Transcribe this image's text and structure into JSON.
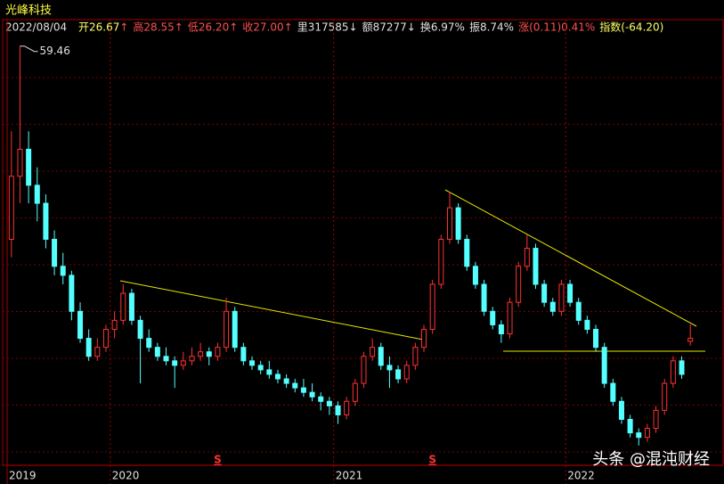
{
  "header": {
    "name": "光峰科技",
    "date": "2022/08/04",
    "items": [
      {
        "text": "开26.67",
        "arrow": "↑",
        "color": "#ffff66"
      },
      {
        "text": "高28.55",
        "arrow": "↑",
        "color": "#ff5050"
      },
      {
        "text": "低26.20",
        "arrow": "↑",
        "color": "#ff5050"
      },
      {
        "text": "收27.00",
        "arrow": "↑",
        "color": "#ff5050"
      },
      {
        "text": "里317585",
        "arrow": "↓",
        "color": "#e0e0e0"
      },
      {
        "text": "额87277",
        "arrow": "↓",
        "color": "#e0e0e0"
      },
      {
        "text": "换6.97%",
        "color": "#e0e0e0"
      },
      {
        "text": "振8.74%",
        "color": "#e0e0e0"
      },
      {
        "text": "涨(0.11)0.41%",
        "color": "#ff5050"
      },
      {
        "text": "指数(-64.20)",
        "color": "#ffff66"
      }
    ]
  },
  "watermark": "头条 @混沌财经",
  "chart_data": {
    "type": "candlestick",
    "up_color": "#ff3232",
    "down_color": "#54ffff",
    "ylim": [
      12.9,
      62.4
    ],
    "categories": [
      "2019",
      null,
      null,
      null,
      null,
      null,
      null,
      null,
      null,
      null,
      null,
      null,
      "2020",
      null,
      null,
      null,
      null,
      null,
      null,
      null,
      null,
      null,
      null,
      null,
      null,
      null,
      null,
      null,
      null,
      null,
      null,
      null,
      null,
      null,
      null,
      null,
      null,
      null,
      "2021",
      null,
      null,
      null,
      null,
      null,
      null,
      null,
      null,
      null,
      null,
      null,
      null,
      null,
      null,
      null,
      null,
      null,
      null,
      null,
      null,
      null,
      null,
      null,
      null,
      null,
      null,
      "2022",
      null,
      null,
      null,
      null,
      null,
      null,
      null,
      null,
      null,
      null,
      null,
      null,
      null,
      null
    ],
    "signals": [
      null,
      null,
      null,
      null,
      null,
      null,
      null,
      null,
      null,
      null,
      null,
      null,
      null,
      null,
      null,
      null,
      null,
      null,
      null,
      null,
      null,
      null,
      null,
      null,
      "S",
      null,
      null,
      null,
      null,
      null,
      null,
      null,
      null,
      null,
      null,
      null,
      null,
      null,
      null,
      null,
      null,
      null,
      null,
      null,
      null,
      null,
      null,
      null,
      null,
      "S",
      null,
      null,
      null,
      null,
      null,
      null,
      null,
      null,
      null,
      null,
      null,
      null,
      null,
      null,
      null,
      null,
      null,
      null,
      null,
      null,
      null,
      null,
      null,
      null,
      null,
      null,
      null,
      null,
      null,
      null
    ],
    "ohlc": [
      [
        38,
        50,
        36,
        45
      ],
      [
        45,
        59.46,
        42,
        48
      ],
      [
        48,
        50,
        42,
        44
      ],
      [
        44,
        46,
        40,
        42
      ],
      [
        42,
        43,
        37,
        38
      ],
      [
        38,
        39,
        34,
        35
      ],
      [
        35,
        36.5,
        33,
        34
      ],
      [
        34,
        34.5,
        29,
        30
      ],
      [
        30,
        31,
        26.5,
        27
      ],
      [
        27,
        28,
        24.5,
        25
      ],
      [
        25,
        27,
        24.5,
        26
      ],
      [
        26,
        28.5,
        25.5,
        28
      ],
      [
        28,
        30,
        27,
        29
      ],
      [
        29,
        33,
        28.5,
        32
      ],
      [
        32,
        32.5,
        28.5,
        29
      ],
      [
        29,
        29.5,
        22,
        27
      ],
      [
        27,
        28,
        25.5,
        26
      ],
      [
        26,
        26.5,
        24.5,
        25
      ],
      [
        25,
        26,
        24,
        24.5
      ],
      [
        24.5,
        25,
        21.5,
        24
      ],
      [
        24,
        25.5,
        23.5,
        24.5
      ],
      [
        24.5,
        26,
        24,
        25
      ],
      [
        25,
        26.5,
        24.5,
        25.5
      ],
      [
        25.5,
        26,
        24,
        25
      ],
      [
        25,
        26.5,
        24.5,
        26
      ],
      [
        26,
        31.5,
        25.5,
        30
      ],
      [
        30,
        30.5,
        25.5,
        26
      ],
      [
        26,
        26.5,
        24,
        24.5
      ],
      [
        24.5,
        25,
        23.5,
        24
      ],
      [
        24,
        24.5,
        23,
        23.5
      ],
      [
        23.5,
        24.5,
        22.5,
        23
      ],
      [
        23,
        23.5,
        22,
        22.5
      ],
      [
        22.5,
        23,
        21.5,
        22
      ],
      [
        22,
        22.5,
        21,
        21.5
      ],
      [
        21.5,
        22.5,
        20.5,
        21
      ],
      [
        21,
        22,
        20,
        20.5
      ],
      [
        20.5,
        21,
        19,
        20
      ],
      [
        20,
        20.5,
        18.5,
        19.5
      ],
      [
        19.5,
        20,
        17.5,
        18.5
      ],
      [
        18.5,
        20.5,
        18,
        20
      ],
      [
        20,
        22.5,
        19.5,
        22
      ],
      [
        22,
        25.5,
        21.5,
        25
      ],
      [
        25,
        27,
        24.5,
        26
      ],
      [
        26,
        26.5,
        23.5,
        24
      ],
      [
        24,
        25,
        21.5,
        23.5
      ],
      [
        23.5,
        24,
        22,
        22.5
      ],
      [
        22.5,
        24.5,
        22,
        24
      ],
      [
        24,
        26.5,
        23.5,
        26
      ],
      [
        26,
        28.5,
        25.5,
        28
      ],
      [
        28,
        33.5,
        27.5,
        33
      ],
      [
        33,
        38.5,
        32.5,
        38
      ],
      [
        38,
        43.3,
        37.5,
        41.5
      ],
      [
        41.5,
        42,
        37.5,
        38
      ],
      [
        38,
        38.5,
        34.5,
        35
      ],
      [
        35,
        35.5,
        32.5,
        33
      ],
      [
        33,
        33.5,
        29.5,
        30
      ],
      [
        30,
        30.5,
        28,
        28.5
      ],
      [
        28.5,
        29,
        26.5,
        27.5
      ],
      [
        27.5,
        31.5,
        27,
        31
      ],
      [
        31,
        35.5,
        30.5,
        35
      ],
      [
        35,
        38.5,
        34.5,
        37
      ],
      [
        37,
        37.5,
        32.5,
        33
      ],
      [
        33,
        33.5,
        30.5,
        31
      ],
      [
        31,
        31.5,
        29.5,
        30
      ],
      [
        30,
        33.5,
        29.5,
        33
      ],
      [
        33,
        33.5,
        30.5,
        31
      ],
      [
        31,
        31.5,
        28.5,
        29
      ],
      [
        29,
        29.5,
        27.5,
        28
      ],
      [
        28,
        28.5,
        25.5,
        26
      ],
      [
        26,
        26.5,
        21.5,
        22
      ],
      [
        22,
        22.5,
        19.5,
        20
      ],
      [
        20,
        20.5,
        17.5,
        18
      ],
      [
        18,
        18.5,
        16,
        16.5
      ],
      [
        16.5,
        17,
        15.1,
        16
      ],
      [
        16,
        17.5,
        15.5,
        17
      ],
      [
        17,
        19.5,
        16.5,
        19
      ],
      [
        19,
        22.5,
        18.5,
        22
      ],
      [
        22,
        25,
        21.5,
        24.5
      ],
      [
        24.5,
        25,
        22.5,
        23
      ],
      [
        26.67,
        28.55,
        26.2,
        27.0
      ]
    ]
  }
}
